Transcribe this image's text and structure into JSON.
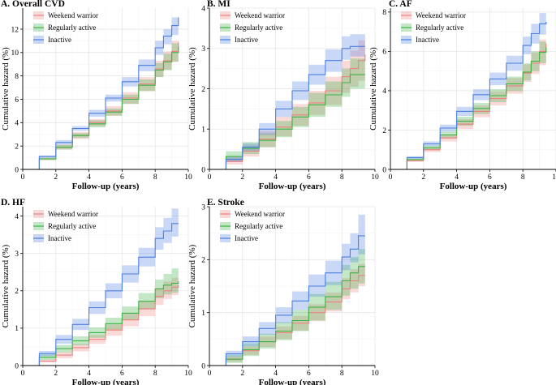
{
  "colors": {
    "weekend_warrior": "#F08080",
    "regularly_active": "#3DB346",
    "inactive": "#4D7FE0",
    "grid": "#E6E6E6"
  },
  "legend_labels": [
    "Weekend warrior",
    "Regularly active",
    "Inactive"
  ],
  "chart_data": [
    {
      "type": "line",
      "title": "A. Overall CVD",
      "xlabel": "Follow-up (years)",
      "ylabel": "Cumulative hazard (%)",
      "xlim": [
        0,
        10
      ],
      "ylim": [
        0,
        13.8
      ],
      "xticks": [
        0,
        2,
        4,
        6,
        8,
        10
      ],
      "yticks": [
        0,
        2,
        4,
        6,
        8,
        10,
        12
      ],
      "grid": true,
      "legend_position": "top-left",
      "x": [
        0,
        1,
        2,
        3,
        4,
        5,
        6,
        7,
        8,
        8.5,
        9,
        9.4
      ],
      "series": [
        {
          "name": "Weekend warrior",
          "values": [
            0,
            0.9,
            1.9,
            2.9,
            4.0,
            5.0,
            6.1,
            7.3,
            8.6,
            9.3,
            10.1,
            10.9
          ],
          "lower": [
            0,
            0.8,
            1.7,
            2.6,
            3.7,
            4.6,
            5.6,
            6.7,
            7.9,
            8.5,
            9.2,
            9.6
          ],
          "upper": [
            0,
            1.0,
            2.1,
            3.2,
            4.3,
            5.4,
            6.6,
            7.9,
            9.3,
            10.1,
            11.0,
            12.2
          ]
        },
        {
          "name": "Regularly active",
          "values": [
            0,
            0.9,
            1.9,
            2.9,
            3.9,
            4.9,
            6.0,
            7.2,
            8.5,
            9.2,
            10.0,
            10.5
          ],
          "lower": [
            0,
            0.8,
            1.7,
            2.7,
            3.6,
            4.6,
            5.6,
            6.7,
            7.9,
            8.5,
            9.2,
            9.5
          ],
          "upper": [
            0,
            1.0,
            2.1,
            3.1,
            4.2,
            5.2,
            6.4,
            7.7,
            9.1,
            9.9,
            10.8,
            11.6
          ]
        },
        {
          "name": "Inactive",
          "values": [
            0,
            1.1,
            2.3,
            3.5,
            4.8,
            6.1,
            7.5,
            8.9,
            10.4,
            11.4,
            12.3,
            13.0
          ],
          "lower": [
            0,
            1.0,
            2.1,
            3.3,
            4.5,
            5.8,
            7.1,
            8.4,
            9.8,
            10.7,
            11.5,
            12.2
          ],
          "upper": [
            0,
            1.2,
            2.5,
            3.7,
            5.1,
            6.4,
            7.9,
            9.4,
            11.0,
            12.0,
            13.0,
            13.7
          ]
        }
      ]
    },
    {
      "type": "line",
      "title": "B. MI",
      "xlabel": "Follow-up (years)",
      "ylabel": "Cumulative hazard (%)",
      "xlim": [
        0,
        10
      ],
      "ylim": [
        0,
        4
      ],
      "xticks": [
        0,
        2,
        4,
        6,
        8,
        10
      ],
      "yticks": [
        0,
        1,
        2,
        3,
        4
      ],
      "grid": true,
      "legend_position": "top-left",
      "x": [
        0,
        1,
        2,
        3,
        4,
        5,
        6,
        7,
        8,
        8.5,
        9,
        9.4
      ],
      "series": [
        {
          "name": "Weekend warrior",
          "values": [
            0,
            0.2,
            0.45,
            0.75,
            1.05,
            1.35,
            1.65,
            1.95,
            2.3,
            2.5,
            2.7,
            2.85
          ],
          "lower": [
            0,
            0.12,
            0.32,
            0.55,
            0.82,
            1.08,
            1.35,
            1.6,
            1.9,
            2.05,
            2.2,
            2.3
          ],
          "upper": [
            0,
            0.3,
            0.6,
            0.95,
            1.3,
            1.62,
            1.95,
            2.3,
            2.7,
            2.95,
            3.2,
            3.4
          ]
        },
        {
          "name": "Regularly active",
          "values": [
            0,
            0.32,
            0.52,
            0.72,
            1.0,
            1.3,
            1.6,
            1.85,
            2.15,
            2.35,
            2.35,
            2.35
          ],
          "lower": [
            0,
            0.2,
            0.38,
            0.55,
            0.8,
            1.05,
            1.3,
            1.55,
            1.8,
            2.0,
            2.0,
            2.0
          ],
          "upper": [
            0,
            0.45,
            0.68,
            0.9,
            1.2,
            1.55,
            1.9,
            2.18,
            2.5,
            2.75,
            2.75,
            2.75
          ]
        },
        {
          "name": "Inactive",
          "values": [
            0,
            0.25,
            0.55,
            1.0,
            1.5,
            1.95,
            2.35,
            2.7,
            3.0,
            3.05,
            3.05,
            3.05
          ],
          "lower": [
            0,
            0.18,
            0.45,
            0.85,
            1.3,
            1.72,
            2.1,
            2.42,
            2.72,
            2.8,
            2.8,
            2.8
          ],
          "upper": [
            0,
            0.32,
            0.65,
            1.15,
            1.7,
            2.18,
            2.6,
            2.98,
            3.3,
            3.35,
            3.35,
            3.35
          ]
        }
      ]
    },
    {
      "type": "line",
      "title": "C. AF",
      "xlabel": "Follow-up (years)",
      "ylabel": "Cumulative hazard (%)",
      "xlim": [
        0,
        10
      ],
      "ylim": [
        0,
        8.2
      ],
      "xticks": [
        0,
        2,
        4,
        6,
        8,
        10
      ],
      "yticks": [
        0,
        2,
        4,
        6,
        8
      ],
      "grid": true,
      "legend_position": "top-left",
      "x": [
        0,
        1,
        2,
        3,
        4,
        5,
        6,
        7,
        8,
        8.5,
        9,
        9.4
      ],
      "series": [
        {
          "name": "Weekend warrior",
          "values": [
            0,
            0.45,
            1.0,
            1.6,
            2.3,
            2.95,
            3.6,
            4.25,
            4.9,
            5.4,
            6.0,
            6.4
          ],
          "lower": [
            0,
            0.38,
            0.88,
            1.42,
            2.05,
            2.65,
            3.25,
            3.85,
            4.45,
            4.85,
            5.3,
            5.6
          ],
          "upper": [
            0,
            0.52,
            1.12,
            1.78,
            2.55,
            3.25,
            3.95,
            4.65,
            5.35,
            5.95,
            6.6,
            7.1
          ]
        },
        {
          "name": "Regularly active",
          "values": [
            0,
            0.5,
            1.1,
            1.75,
            2.45,
            3.1,
            3.75,
            4.35,
            4.95,
            5.5,
            5.95,
            6.2
          ],
          "lower": [
            0,
            0.43,
            0.98,
            1.58,
            2.22,
            2.82,
            3.42,
            3.98,
            4.52,
            5.0,
            5.4,
            5.6
          ],
          "upper": [
            0,
            0.57,
            1.22,
            1.92,
            2.68,
            3.38,
            4.08,
            4.72,
            5.38,
            6.0,
            6.5,
            6.8
          ]
        },
        {
          "name": "Inactive",
          "values": [
            0,
            0.6,
            1.3,
            2.1,
            2.95,
            3.8,
            4.6,
            5.4,
            6.3,
            6.9,
            7.4,
            7.5
          ],
          "lower": [
            0,
            0.53,
            1.18,
            1.92,
            2.72,
            3.52,
            4.28,
            5.02,
            5.85,
            6.4,
            6.85,
            6.95
          ],
          "upper": [
            0,
            0.67,
            1.42,
            2.28,
            3.18,
            4.08,
            4.92,
            5.78,
            6.75,
            7.4,
            7.95,
            8.05
          ]
        }
      ]
    },
    {
      "type": "line",
      "title": "D. HF",
      "xlabel": "Follow-up (years)",
      "ylabel": "Cumulative hazard (%)",
      "xlim": [
        0,
        10
      ],
      "ylim": [
        0,
        4.25
      ],
      "xticks": [
        0,
        2,
        4,
        6,
        8,
        10
      ],
      "yticks": [
        0,
        1,
        2,
        3,
        4
      ],
      "grid": true,
      "legend_position": "top-left",
      "x": [
        0,
        1,
        2,
        3,
        4,
        5,
        6,
        7,
        8,
        8.5,
        9,
        9.4
      ],
      "series": [
        {
          "name": "Weekend warrior",
          "values": [
            0,
            0.12,
            0.28,
            0.48,
            0.7,
            0.95,
            1.22,
            1.52,
            1.85,
            2.0,
            2.1,
            2.15
          ],
          "lower": [
            0,
            0.08,
            0.2,
            0.38,
            0.58,
            0.8,
            1.05,
            1.32,
            1.62,
            1.78,
            1.88,
            1.92
          ],
          "upper": [
            0,
            0.16,
            0.36,
            0.58,
            0.82,
            1.1,
            1.4,
            1.72,
            2.08,
            2.25,
            2.35,
            2.4
          ]
        },
        {
          "name": "Regularly active",
          "values": [
            0,
            0.22,
            0.45,
            0.66,
            0.88,
            1.12,
            1.4,
            1.72,
            2.05,
            2.15,
            2.2,
            2.25
          ],
          "lower": [
            0,
            0.15,
            0.35,
            0.54,
            0.74,
            0.96,
            1.22,
            1.5,
            1.8,
            1.9,
            1.95,
            2.0
          ],
          "upper": [
            0,
            0.3,
            0.55,
            0.78,
            1.02,
            1.28,
            1.58,
            1.94,
            2.3,
            2.45,
            2.6,
            2.7
          ]
        },
        {
          "name": "Inactive",
          "values": [
            0,
            0.32,
            0.7,
            1.1,
            1.55,
            2.0,
            2.45,
            2.9,
            3.4,
            3.6,
            3.8,
            3.8
          ],
          "lower": [
            0,
            0.25,
            0.58,
            0.95,
            1.38,
            1.8,
            2.22,
            2.65,
            3.1,
            3.28,
            3.45,
            3.45
          ],
          "upper": [
            0,
            0.39,
            0.82,
            1.25,
            1.72,
            2.2,
            2.68,
            3.15,
            3.7,
            3.95,
            4.2,
            4.2
          ]
        }
      ]
    },
    {
      "type": "line",
      "title": "E. Stroke",
      "xlabel": "Follow-up (years)",
      "ylabel": "Cumulative hazard (%)",
      "xlim": [
        0,
        10
      ],
      "ylim": [
        0,
        3
      ],
      "xticks": [
        0,
        2,
        4,
        6,
        8,
        10
      ],
      "yticks": [
        0,
        1,
        2,
        3
      ],
      "grid": true,
      "legend_position": "top-left",
      "x": [
        0,
        1,
        2,
        3,
        4,
        5,
        6,
        7,
        8,
        8.5,
        9,
        9.4
      ],
      "series": [
        {
          "name": "Weekend warrior",
          "values": [
            0,
            0.12,
            0.28,
            0.45,
            0.62,
            0.8,
            1.0,
            1.2,
            1.45,
            1.6,
            1.7,
            1.7
          ],
          "lower": [
            0,
            0.07,
            0.2,
            0.35,
            0.5,
            0.66,
            0.84,
            1.02,
            1.25,
            1.38,
            1.5,
            1.5
          ],
          "upper": [
            0,
            0.17,
            0.36,
            0.55,
            0.74,
            0.94,
            1.16,
            1.38,
            1.65,
            1.82,
            1.92,
            1.92
          ]
        },
        {
          "name": "Regularly active",
          "values": [
            0,
            0.12,
            0.3,
            0.45,
            0.65,
            0.85,
            1.1,
            1.3,
            1.6,
            1.75,
            1.87,
            1.87
          ],
          "lower": [
            0,
            0.05,
            0.18,
            0.32,
            0.48,
            0.65,
            0.85,
            1.05,
            1.32,
            1.45,
            1.55,
            1.55
          ],
          "upper": [
            0,
            0.2,
            0.42,
            0.6,
            0.82,
            1.05,
            1.35,
            1.58,
            1.9,
            2.05,
            2.2,
            2.2
          ]
        },
        {
          "name": "Inactive",
          "values": [
            0,
            0.22,
            0.45,
            0.7,
            0.95,
            1.22,
            1.5,
            1.75,
            2.05,
            2.2,
            2.45,
            2.45
          ],
          "lower": [
            0,
            0.16,
            0.36,
            0.58,
            0.8,
            1.05,
            1.3,
            1.52,
            1.8,
            1.95,
            2.1,
            2.1
          ],
          "upper": [
            0,
            0.28,
            0.55,
            0.82,
            1.1,
            1.4,
            1.72,
            1.98,
            2.3,
            2.5,
            2.85,
            2.85
          ]
        }
      ]
    }
  ]
}
